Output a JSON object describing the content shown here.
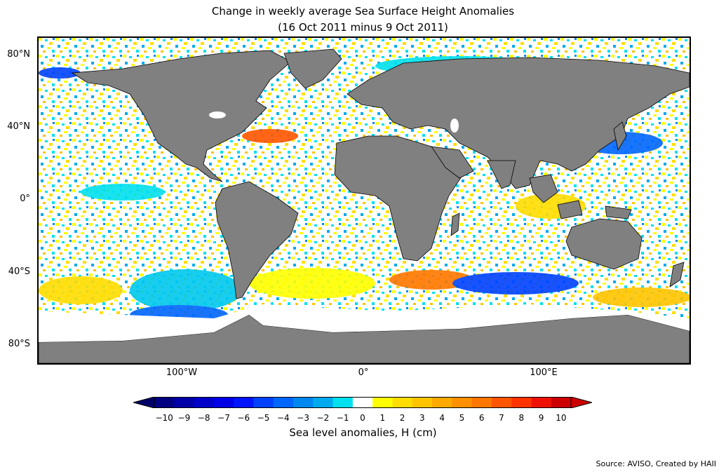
{
  "title": {
    "line1": "Change in weekly average Sea Surface Height Anomalies",
    "line2": "(16 Oct 2011 minus 9 Oct 2011)"
  },
  "map": {
    "projection": "equirectangular",
    "land_color": "#808080",
    "coastline_color": "#000000",
    "lat_ticks": [
      "80°N",
      "40°N",
      "0°",
      "40°S",
      "80°S"
    ],
    "lon_ticks": [
      "100°W",
      "0°",
      "100°E"
    ]
  },
  "colorbar": {
    "label": "Sea level anomalies, H (cm)",
    "ticks": [
      "−10",
      "−9",
      "−8",
      "−7",
      "−6",
      "−5",
      "−4",
      "−3",
      "−2",
      "−1",
      "0",
      "1",
      "2",
      "3",
      "4",
      "5",
      "6",
      "7",
      "8",
      "9",
      "10"
    ],
    "under_color": "#000066",
    "over_color": "#cc0000",
    "colors": [
      "#000080",
      "#0000a8",
      "#0000c8",
      "#0000e6",
      "#0014ff",
      "#0041ff",
      "#0066ff",
      "#0088ee",
      "#00aaee",
      "#00e0ee",
      "#ffffff",
      "#ffff00",
      "#ffdd00",
      "#ffc400",
      "#ffaa00",
      "#ff9000",
      "#ff7700",
      "#ff5500",
      "#ff3300",
      "#ee1100",
      "#cc0000"
    ]
  },
  "source": "Source: AVISO, Created by HAII"
}
